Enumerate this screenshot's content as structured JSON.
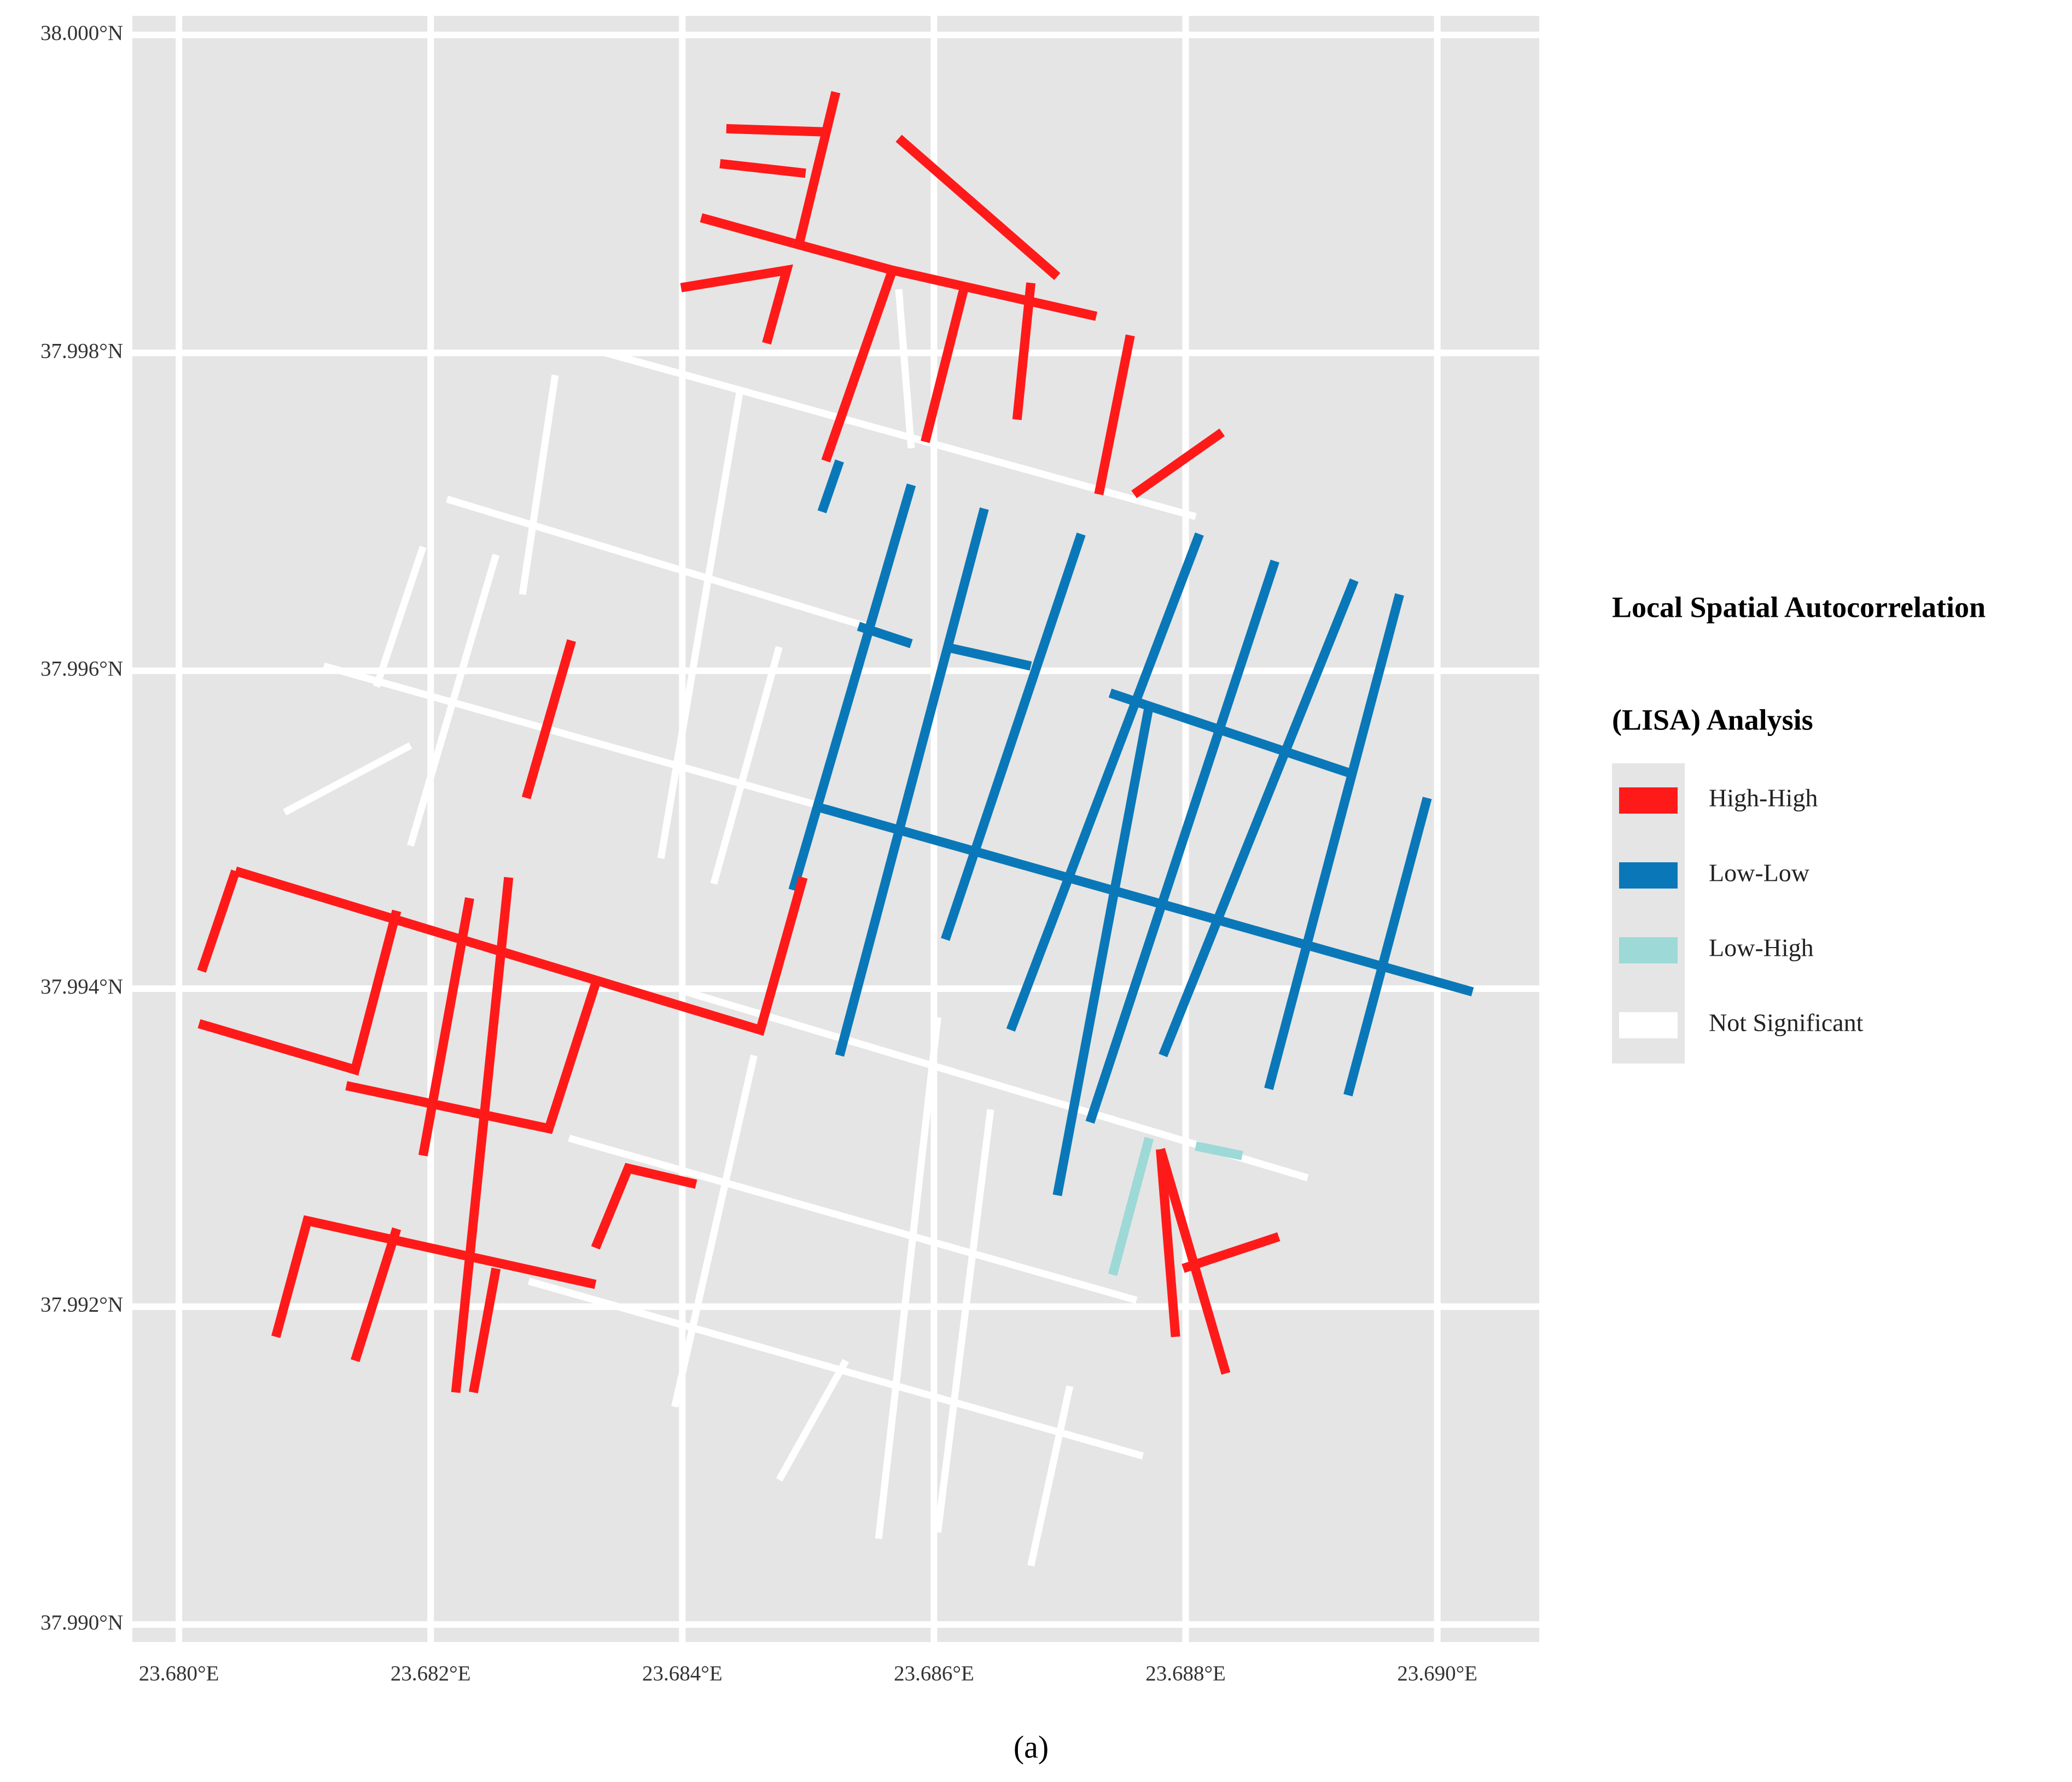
{
  "chart_data": {
    "type": "map",
    "caption": "(a)",
    "legend_title": [
      "Local Spatial Autocorrelation",
      "(LISA) Analysis"
    ],
    "classes": [
      {
        "name": "High-High",
        "color": "#ff1a1a"
      },
      {
        "name": "Low-Low",
        "color": "#0a78b8"
      },
      {
        "name": "Low-High",
        "color": "#9dd9d6"
      },
      {
        "name": "Not Significant",
        "color": "#ffffff"
      }
    ],
    "xlim": [
      23.67963,
      23.69081
    ],
    "ylim": [
      37.98989,
      38.00012
    ],
    "xticks": [
      {
        "value": 23.68,
        "label": "23.680°E"
      },
      {
        "value": 23.682,
        "label": "23.682°E"
      },
      {
        "value": 23.684,
        "label": "23.684°E"
      },
      {
        "value": 23.686,
        "label": "23.686°E"
      },
      {
        "value": 23.688,
        "label": "23.688°E"
      },
      {
        "value": 23.69,
        "label": "23.690°E"
      }
    ],
    "yticks": [
      {
        "value": 37.99,
        "label": "37.990°N"
      },
      {
        "value": 37.992,
        "label": "37.992°N"
      },
      {
        "value": 37.994,
        "label": "37.994°N"
      },
      {
        "value": 37.996,
        "label": "37.996°N"
      },
      {
        "value": 37.998,
        "label": "37.998°N"
      },
      {
        "value": 38.0,
        "label": "38.000°N"
      }
    ],
    "grid": true,
    "streets": [
      {
        "class": 3,
        "lon": [
          23.68213,
          23.68546
        ],
        "lat": [
          37.99708,
          37.99628
        ]
      },
      {
        "class": 3,
        "lon": [
          23.68339,
          23.68808
        ],
        "lat": [
          37.998,
          37.99697
        ]
      },
      {
        "class": 3,
        "lon": [
          23.68115,
          23.68514
        ],
        "lat": [
          37.99603,
          37.99514
        ]
      },
      {
        "class": 3,
        "lon": [
          23.68399,
          23.68897
        ],
        "lat": [
          37.99399,
          37.99281
        ]
      },
      {
        "class": 3,
        "lon": [
          23.6831,
          23.68761
        ],
        "lat": [
          37.99306,
          37.99204
        ]
      },
      {
        "class": 3,
        "lon": [
          23.68278,
          23.68766
        ],
        "lat": [
          37.99216,
          37.99106
        ]
      },
      {
        "class": 3,
        "lon": [
          23.68299,
          23.68273
        ],
        "lat": [
          37.99786,
          37.99648
        ]
      },
      {
        "class": 3,
        "lon": [
          23.68446,
          23.68383
        ],
        "lat": [
          37.99777,
          37.99482
        ]
      },
      {
        "class": 3,
        "lon": [
          23.68252,
          23.68184
        ],
        "lat": [
          37.99673,
          37.9949
        ]
      },
      {
        "class": 3,
        "lon": [
          23.68477,
          23.68425
        ],
        "lat": [
          37.99615,
          37.99466
        ]
      },
      {
        "class": 3,
        "lon": [
          23.68457,
          23.68394
        ],
        "lat": [
          37.99358,
          37.99137
        ]
      },
      {
        "class": 3,
        "lon": [
          23.68603,
          23.68556
        ],
        "lat": [
          37.99382,
          37.99054
        ]
      },
      {
        "class": 3,
        "lon": [
          23.68645,
          23.68603
        ],
        "lat": [
          37.99324,
          37.99058
        ]
      },
      {
        "class": 3,
        "lon": [
          23.68572,
          23.68582
        ],
        "lat": [
          37.9984,
          37.9974
        ]
      },
      {
        "class": 3,
        "lon": [
          23.68194,
          23.68157
        ],
        "lat": [
          37.99678,
          37.9959
        ]
      },
      {
        "class": 3,
        "lon": [
          23.68184,
          23.68084
        ],
        "lat": [
          37.99553,
          37.99511
        ]
      },
      {
        "class": 3,
        "lon": [
          23.6853,
          23.68477
        ],
        "lat": [
          37.99166,
          37.99091
        ]
      },
      {
        "class": 3,
        "lon": [
          23.68708,
          23.68677
        ],
        "lat": [
          37.9915,
          37.99037
        ]
      },
      {
        "class": 1,
        "lon": [
          23.68509,
          23.69028
        ],
        "lat": [
          37.99514,
          37.99398
        ]
      },
      {
        "class": 1,
        "lon": [
          23.68582,
          23.68488
        ],
        "lat": [
          37.99717,
          37.99462
        ]
      },
      {
        "class": 1,
        "lon": [
          23.68525,
          23.68511
        ],
        "lat": [
          37.99732,
          37.997
        ]
      },
      {
        "class": 1,
        "lon": [
          23.6864,
          23.68525
        ],
        "lat": [
          37.99702,
          37.99358
        ]
      },
      {
        "class": 1,
        "lon": [
          23.68717,
          23.68609
        ],
        "lat": [
          37.99686,
          37.99431
        ]
      },
      {
        "class": 1,
        "lon": [
          23.68811,
          23.68661
        ],
        "lat": [
          37.99686,
          37.99374
        ]
      },
      {
        "class": 1,
        "lon": [
          23.68871,
          23.68724
        ],
        "lat": [
          37.99669,
          37.99316
        ]
      },
      {
        "class": 1,
        "lon": [
          23.68934,
          23.68782
        ],
        "lat": [
          37.99657,
          37.99358
        ]
      },
      {
        "class": 1,
        "lon": [
          23.6897,
          23.68866
        ],
        "lat": [
          37.99648,
          37.99337
        ]
      },
      {
        "class": 1,
        "lon": [
          23.68992,
          23.68929
        ],
        "lat": [
          37.9952,
          37.99333
        ]
      },
      {
        "class": 1,
        "lon": [
          23.6874,
          23.68929
        ],
        "lat": [
          37.99586,
          37.99536
        ]
      },
      {
        "class": 1,
        "lon": [
          23.6854,
          23.68582
        ],
        "lat": [
          37.99628,
          37.99617
        ]
      },
      {
        "class": 1,
        "lon": [
          23.68609,
          23.68677
        ],
        "lat": [
          37.99615,
          37.99603
        ]
      },
      {
        "class": 1,
        "lon": [
          23.68771,
          23.68698
        ],
        "lat": [
          37.99578,
          37.9927
        ]
      },
      {
        "class": 2,
        "lon": [
          23.68771,
          23.68742
        ],
        "lat": [
          37.99306,
          37.9922
        ]
      },
      {
        "class": 2,
        "lon": [
          23.68808,
          23.68845
        ],
        "lat": [
          37.99301,
          37.99295
        ]
      },
      {
        "class": 0,
        "lon": [
          23.68045,
          23.68462,
          23.68496
        ],
        "lat": [
          37.99474,
          37.99374,
          37.9947
        ]
      },
      {
        "class": 0,
        "lon": [
          23.68016,
          23.6814,
          23.68173
        ],
        "lat": [
          37.99378,
          37.99349,
          37.99449
        ]
      },
      {
        "class": 0,
        "lon": [
          23.68045,
          23.68018
        ],
        "lat": [
          37.99474,
          37.99411
        ]
      },
      {
        "class": 0,
        "lon": [
          23.68077,
          23.68102,
          23.68331
        ],
        "lat": [
          37.99181,
          37.99254,
          37.99214
        ]
      },
      {
        "class": 0,
        "lon": [
          23.68133,
          23.68294,
          23.68331
        ],
        "lat": [
          37.99339,
          37.99312,
          37.99403
        ]
      },
      {
        "class": 0,
        "lon": [
          23.68231,
          23.68194
        ],
        "lat": [
          37.99457,
          37.99295
        ]
      },
      {
        "class": 0,
        "lon": [
          23.68262,
          23.6822
        ],
        "lat": [
          37.9947,
          37.99146
        ]
      },
      {
        "class": 0,
        "lon": [
          23.68173,
          23.6814
        ],
        "lat": [
          37.99249,
          37.99166
        ]
      },
      {
        "class": 0,
        "lon": [
          23.68252,
          23.68234
        ],
        "lat": [
          37.99224,
          37.99146
        ]
      },
      {
        "class": 0,
        "lon": [
          23.68331,
          23.68357,
          23.68411
        ],
        "lat": [
          37.99237,
          37.99287,
          37.99277
        ]
      },
      {
        "class": 0,
        "lon": [
          23.68312,
          23.68276
        ],
        "lat": [
          37.99619,
          37.9952
        ]
      },
      {
        "class": 0,
        "lon": [
          23.68488,
          23.68567,
          23.68514
        ],
        "lat": [
          37.99869,
          37.99852,
          37.99732
        ]
      },
      {
        "class": 0,
        "lon": [
          23.68572,
          23.68698
        ],
        "lat": [
          37.99935,
          37.99848
        ]
      },
      {
        "class": 0,
        "lon": [
          23.68435,
          23.68514
        ],
        "lat": [
          37.99941,
          37.99939
        ]
      },
      {
        "class": 0,
        "lon": [
          23.6843,
          23.68498
        ],
        "lat": [
          37.99919,
          37.99913
        ]
      },
      {
        "class": 0,
        "lon": [
          23.68415,
          23.68488
        ],
        "lat": [
          37.99885,
          37.99869
        ]
      },
      {
        "class": 0,
        "lon": [
          23.68522,
          23.68493
        ],
        "lat": [
          37.99964,
          37.99869
        ]
      },
      {
        "class": 0,
        "lon": [
          23.68399,
          23.68483,
          23.68467
        ],
        "lat": [
          37.99841,
          37.99852,
          37.99806
        ]
      },
      {
        "class": 0,
        "lon": [
          23.68567,
          23.68729
        ],
        "lat": [
          37.99852,
          37.99823
        ]
      },
      {
        "class": 0,
        "lon": [
          23.68624,
          23.68593
        ],
        "lat": [
          37.99841,
          37.99744
        ]
      },
      {
        "class": 0,
        "lon": [
          23.68677,
          23.68666
        ],
        "lat": [
          37.99844,
          37.99758
        ]
      },
      {
        "class": 0,
        "lon": [
          23.68756,
          23.68731
        ],
        "lat": [
          37.99811,
          37.99711
        ]
      },
      {
        "class": 0,
        "lon": [
          23.68829,
          23.68759
        ],
        "lat": [
          37.9975,
          37.99711
        ]
      },
      {
        "class": 0,
        "lon": [
          23.6878,
          23.68792
        ],
        "lat": [
          37.99299,
          37.99181
        ]
      },
      {
        "class": 0,
        "lon": [
          23.6878,
          23.68832
        ],
        "lat": [
          37.99299,
          37.99158
        ]
      },
      {
        "class": 0,
        "lon": [
          23.68798,
          23.68874
        ],
        "lat": [
          37.99224,
          37.99244
        ]
      }
    ]
  }
}
